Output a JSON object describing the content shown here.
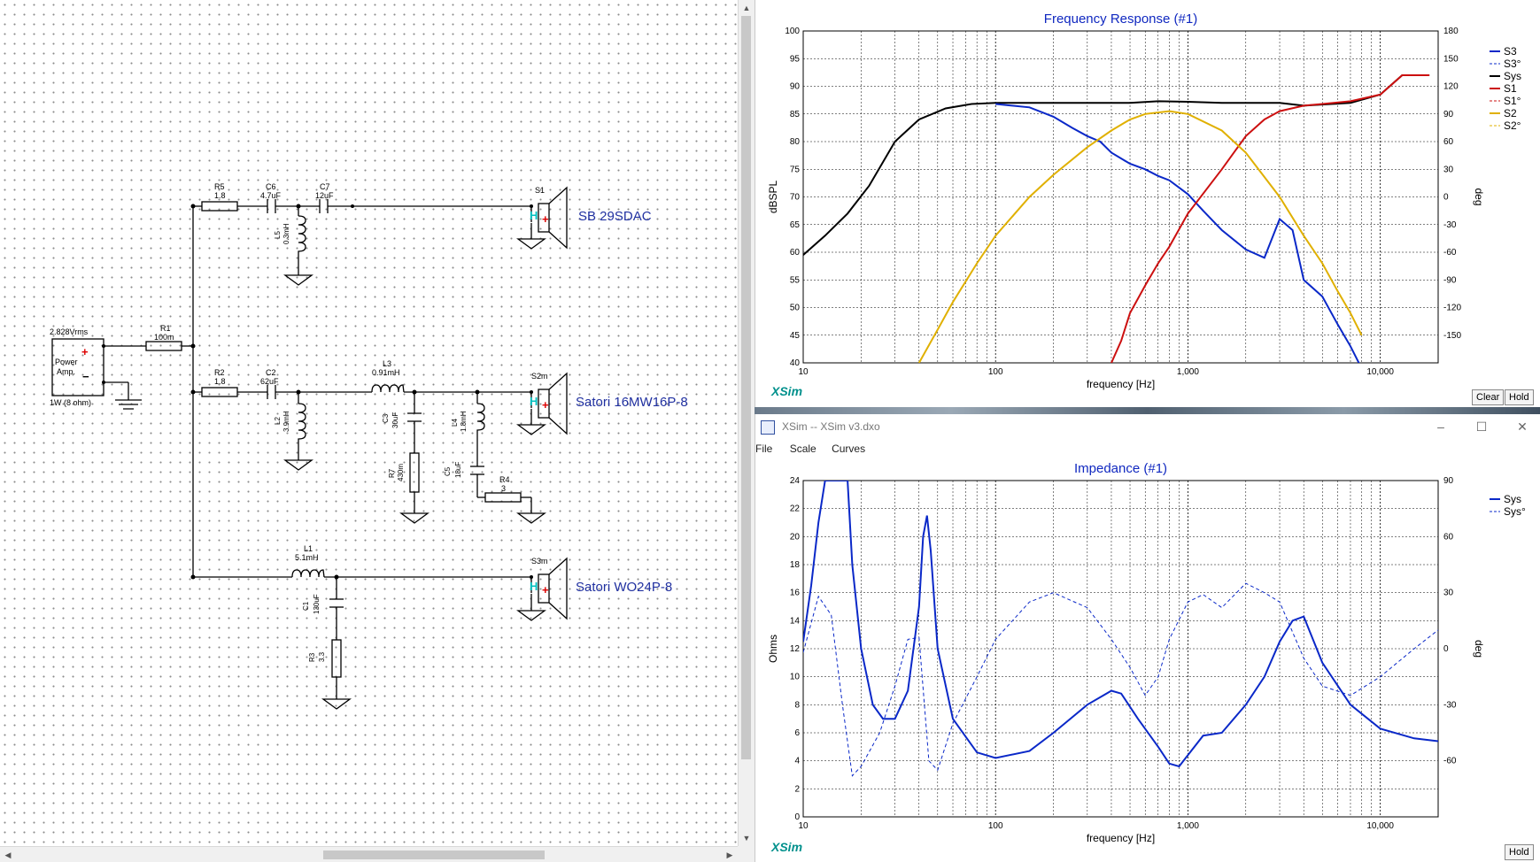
{
  "schematic": {
    "source": {
      "voltage": "2.828Vrms",
      "name_line1": "Power",
      "name_line2": "Amp.",
      "rating": "1W (8 ohm)"
    },
    "labels": {
      "R1": "R1",
      "R1v": "100m",
      "R5": "R5",
      "R5v": "1.8",
      "C6": "C6",
      "C6v": "4.7uF",
      "C7": "C7",
      "C7v": "12uF",
      "L5": "L5",
      "L5v": "0.3mH",
      "R2": "R2",
      "R2v": "1.8",
      "C2": "C2",
      "C2v": "62uF",
      "L3": "L3",
      "L3v": "0.91mH",
      "L2": "L2",
      "L2v": "3.9mH",
      "C3": "C3",
      "C3v": "30uF",
      "R7": "R7",
      "R7v": "430m",
      "L4": "L4",
      "L4v": "1.8mH",
      "C5": "C5",
      "C5v": "18uF",
      "R4": "R4",
      "R4v": "3",
      "L1": "L1",
      "L1v": "5.1mH",
      "C1": "C1",
      "C1v": "130uF",
      "R3": "R3",
      "R3v": "3.3"
    },
    "speakers": [
      {
        "ref": "S1",
        "name": "SB 29SDAC"
      },
      {
        "ref": "S2m",
        "name": "Satori 16MW16P-8"
      },
      {
        "ref": "S3m",
        "name": "Satori WO24P-8"
      }
    ]
  },
  "impedance_window": {
    "title": "XSim -- XSim v3.dxo",
    "menu": [
      "File",
      "Scale",
      "Curves"
    ],
    "controls": {
      "minimize": "–",
      "maximize": "☐",
      "close": "✕"
    }
  },
  "chart_data": [
    {
      "type": "line",
      "title": "Frequency Response (#1)",
      "xlabel": "frequency [Hz]",
      "ylabel": "dBSPL",
      "y2label": "deg",
      "xscale": "log",
      "xlim": [
        10,
        20000
      ],
      "ylim": [
        40,
        100
      ],
      "y2lim": [
        -180,
        180
      ],
      "x_ticks": [
        "10",
        "100",
        "1,000",
        "10,000"
      ],
      "y_ticks": [
        "40",
        "45",
        "50",
        "55",
        "60",
        "65",
        "70",
        "75",
        "80",
        "85",
        "90",
        "95",
        "100"
      ],
      "y2_ticks": [
        "-150",
        "-120",
        "-90",
        "-60",
        "-30",
        "0",
        "30",
        "60",
        "90",
        "120",
        "150",
        "180"
      ],
      "grid": true,
      "legend_position": "right",
      "watermark": "XSim",
      "buttons": [
        "Clear",
        "Hold"
      ],
      "colors": {
        "S3": "#0a28c8",
        "S1": "#cc1010",
        "S2": "#e0b000",
        "Sys": "#000000"
      },
      "series": [
        {
          "name": "Sys",
          "x": [
            10,
            13,
            17,
            22,
            30,
            40,
            55,
            75,
            100,
            150,
            200,
            300,
            400,
            500,
            700,
            1000,
            1500,
            2000,
            3000,
            4000,
            5000,
            7000,
            10000,
            13000,
            18000
          ],
          "values": [
            59.5,
            63,
            67,
            72,
            80,
            84,
            86,
            86.8,
            87,
            87,
            87,
            87,
            87,
            87,
            87.3,
            87.2,
            87,
            87,
            87,
            86.5,
            86.7,
            87,
            88.5,
            92,
            92
          ]
        },
        {
          "name": "S3",
          "x": [
            100,
            150,
            200,
            250,
            300,
            350,
            400,
            500,
            600,
            700,
            800,
            1000,
            1200,
            1500,
            2000,
            2500,
            3000,
            3500,
            4000,
            5000,
            6000,
            7000,
            8000
          ],
          "values": [
            86.8,
            86.2,
            84.5,
            82.5,
            81,
            80,
            78,
            76,
            75,
            73.8,
            73,
            70.5,
            67.5,
            64,
            60.5,
            59,
            66,
            64,
            55,
            52,
            47,
            43,
            39
          ]
        },
        {
          "name": "S1",
          "x": [
            400,
            450,
            500,
            600,
            700,
            800,
            1000,
            1500,
            2000,
            2500,
            3000,
            4000,
            5000,
            7000,
            10000,
            13000,
            18000
          ],
          "values": [
            40,
            44,
            49,
            54,
            58,
            61,
            67,
            75,
            81,
            84,
            85.5,
            86.5,
            86.8,
            87.3,
            88.5,
            92,
            92
          ]
        },
        {
          "name": "S2",
          "x": [
            40,
            50,
            60,
            80,
            100,
            150,
            200,
            300,
            400,
            500,
            600,
            800,
            1000,
            1500,
            2000,
            3000,
            4000,
            5000,
            6000,
            7000,
            8000
          ],
          "values": [
            40,
            46,
            51,
            58,
            63,
            70,
            74,
            79,
            82,
            84,
            85,
            85.5,
            85,
            82,
            78,
            70,
            63,
            58,
            53,
            49,
            45
          ]
        }
      ]
    },
    {
      "type": "line",
      "title": "Impedance (#1)",
      "xlabel": "frequency [Hz]",
      "ylabel": "Ohms",
      "y2label": "deg",
      "xscale": "log",
      "xlim": [
        10,
        20000
      ],
      "ylim": [
        0,
        24
      ],
      "y2lim": [
        -90,
        90
      ],
      "x_ticks": [
        "10",
        "100",
        "1,000",
        "10,000"
      ],
      "y_ticks": [
        "0",
        "2",
        "4",
        "6",
        "8",
        "10",
        "12",
        "14",
        "16",
        "18",
        "20",
        "22",
        "24"
      ],
      "y2_ticks": [
        "-60",
        "-30",
        "0",
        "30",
        "60",
        "90"
      ],
      "grid": true,
      "legend_position": "top-right",
      "watermark": "XSim",
      "buttons": [
        "Hold"
      ],
      "colors": {
        "Sys": "#0a28c8"
      },
      "series": [
        {
          "name": "Sys",
          "x": [
            10,
            11,
            12,
            13,
            14,
            16,
            17,
            18,
            20,
            23,
            26,
            30,
            35,
            40,
            42,
            44,
            46,
            50,
            60,
            80,
            100,
            150,
            200,
            300,
            400,
            450,
            550,
            700,
            800,
            900,
            1000,
            1200,
            1500,
            2000,
            2500,
            3000,
            3500,
            4000,
            5000,
            7000,
            10000,
            15000,
            20000
          ],
          "values": [
            12.5,
            16.5,
            21,
            24,
            24,
            24,
            24,
            18,
            12,
            8,
            7,
            7,
            9,
            15,
            20,
            21.5,
            19,
            12,
            7,
            4.6,
            4.2,
            4.7,
            6,
            8,
            9,
            8.8,
            7,
            5,
            3.8,
            3.6,
            4.4,
            5.8,
            6,
            8,
            10,
            12.5,
            14,
            14.3,
            11,
            8,
            6.3,
            5.6,
            5.4
          ]
        },
        {
          "name": "Sys°",
          "x": [
            10,
            12,
            14,
            16,
            18,
            20,
            25,
            30,
            35,
            40,
            45,
            50,
            60,
            80,
            100,
            150,
            200,
            300,
            400,
            500,
            600,
            700,
            800,
            1000,
            1200,
            1500,
            2000,
            2500,
            3000,
            4000,
            5000,
            7000,
            10000,
            15000,
            20000
          ],
          "values": [
            -2,
            28,
            18,
            -30,
            -68,
            -63,
            -45,
            -20,
            5,
            6,
            -60,
            -65,
            -40,
            -15,
            5,
            25,
            30,
            22,
            5,
            -10,
            -25,
            -15,
            5,
            25,
            29,
            22,
            35,
            30,
            25,
            -5,
            -20,
            -25,
            -15,
            0,
            10
          ]
        }
      ]
    }
  ]
}
